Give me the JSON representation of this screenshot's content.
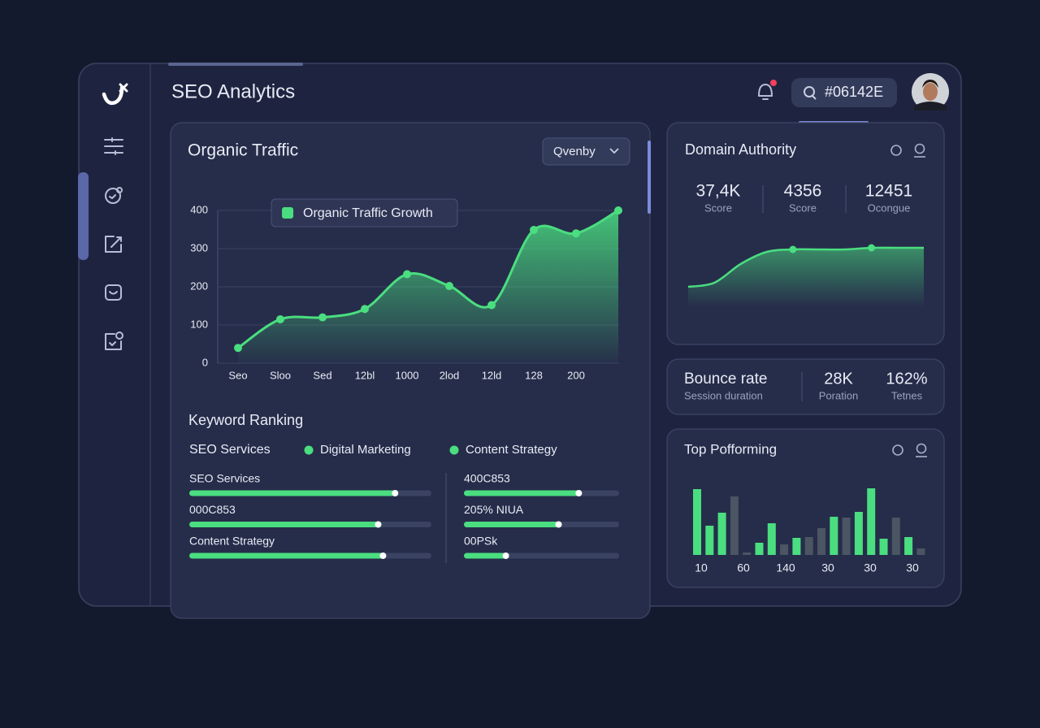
{
  "header": {
    "title": "SEO Analytics",
    "search": "#06142E"
  },
  "organic_traffic": {
    "dropdown": "Qvenby"
  },
  "chart_data": [
    {
      "type": "area",
      "title": "Organic Traffic",
      "categories": [
        "Seo",
        "Sloo",
        "Sed",
        "12bl",
        "1000",
        "2lod",
        "12ld",
        "128",
        "200",
        null
      ],
      "series": [
        {
          "name": "Organic Traffic Growth",
          "color": "#4ade80",
          "values": [
            40,
            115,
            120,
            142,
            233,
            202,
            152,
            349,
            340,
            400
          ]
        }
      ],
      "ylim": [
        0,
        400
      ],
      "yticks": [
        0,
        100,
        200,
        300,
        400
      ],
      "grid": true
    },
    {
      "type": "line",
      "title": "Domain Authority",
      "color": "#4ade80",
      "values": [
        0,
        5,
        28,
        43,
        46,
        46,
        46,
        48,
        48,
        48
      ]
    },
    {
      "type": "bar",
      "title": "Top Pofforming",
      "x_labels": [
        "10",
        "60",
        "140",
        "30",
        "30",
        "30"
      ],
      "series": [
        {
          "color": "#4ade80",
          "values": [
            81,
            36,
            52,
            null,
            null,
            15,
            39,
            null,
            21,
            null,
            null,
            47,
            null,
            53,
            82,
            20,
            null,
            22,
            null
          ]
        },
        {
          "color": "#4b5563",
          "values": [
            null,
            null,
            null,
            72,
            3,
            null,
            null,
            13,
            null,
            22,
            33,
            null,
            46,
            null,
            null,
            null,
            46,
            null,
            8
          ]
        }
      ]
    }
  ],
  "domain_authority": {
    "stats": [
      {
        "value": "37,4K",
        "label": "Score"
      },
      {
        "value": "4356",
        "label": "Score"
      },
      {
        "value": "12451",
        "label": "Oconguе"
      }
    ]
  },
  "bounce": {
    "title": "Bounce rate",
    "subtitle": "Session duration",
    "stats": [
      {
        "value": "28K",
        "label": "Poration"
      },
      {
        "value": "162%",
        "label": "Tetnes"
      }
    ]
  },
  "keyword_ranking": {
    "title": "Keyword Ranking",
    "legend": [
      "SEO Services",
      "Digital Marketing",
      "Content Strategy"
    ],
    "rows": [
      {
        "label": "SEO Services",
        "value": 85
      },
      {
        "label": "000C853",
        "value": 78
      },
      {
        "label": "Content Strategy",
        "value": 80
      },
      {
        "label": "400C853",
        "value": 74
      },
      {
        "label": "205% NIUA",
        "value": 61
      },
      {
        "label": "00PSk",
        "value": 27
      }
    ]
  }
}
